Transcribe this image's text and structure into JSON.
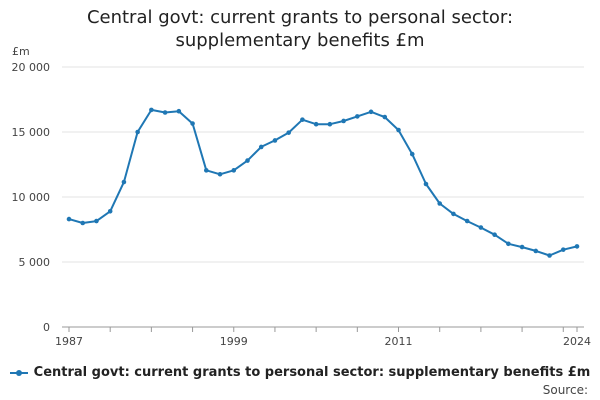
{
  "title_line1": "Central govt: current grants to personal sector:",
  "title_line2": "supplementary benefits £m",
  "source_label": "Source:",
  "chart_data": {
    "type": "line",
    "title": "Central govt: current grants to personal sector: supplementary benefits £m",
    "ylabel": "£m",
    "xlabel": "",
    "ylim": [
      0,
      20000
    ],
    "yticks": [
      0,
      5000,
      10000,
      15000,
      20000
    ],
    "ytick_labels": [
      "0",
      "5 000",
      "10 000",
      "15 000",
      "20 000"
    ],
    "xticks": [
      1987,
      1999,
      2011,
      2024
    ],
    "xtick_labels": [
      "1987",
      "1999",
      "2011",
      "2024"
    ],
    "grid": true,
    "legend": "bottom",
    "color": "#1f77b4",
    "series": [
      {
        "name": "Central govt: current grants to personal sector: supplementary benefits £m",
        "x": [
          1987,
          1988,
          1989,
          1990,
          1991,
          1992,
          1993,
          1994,
          1995,
          1996,
          1997,
          1998,
          1999,
          2000,
          2001,
          2002,
          2003,
          2004,
          2005,
          2006,
          2007,
          2008,
          2009,
          2010,
          2011,
          2012,
          2013,
          2014,
          2015,
          2016,
          2017,
          2018,
          2019,
          2020,
          2021,
          2022,
          2023,
          2024
        ],
        "values": [
          8300,
          8000,
          8150,
          8900,
          11150,
          15000,
          16700,
          16500,
          16600,
          15650,
          12050,
          11750,
          12050,
          12800,
          13850,
          14350,
          14950,
          15950,
          15600,
          15600,
          15850,
          16200,
          16550,
          16150,
          15150,
          13300,
          11000,
          9500,
          8700,
          8150,
          7650,
          7100,
          6400,
          6150,
          5850,
          5500,
          5950,
          6200
        ]
      }
    ]
  }
}
